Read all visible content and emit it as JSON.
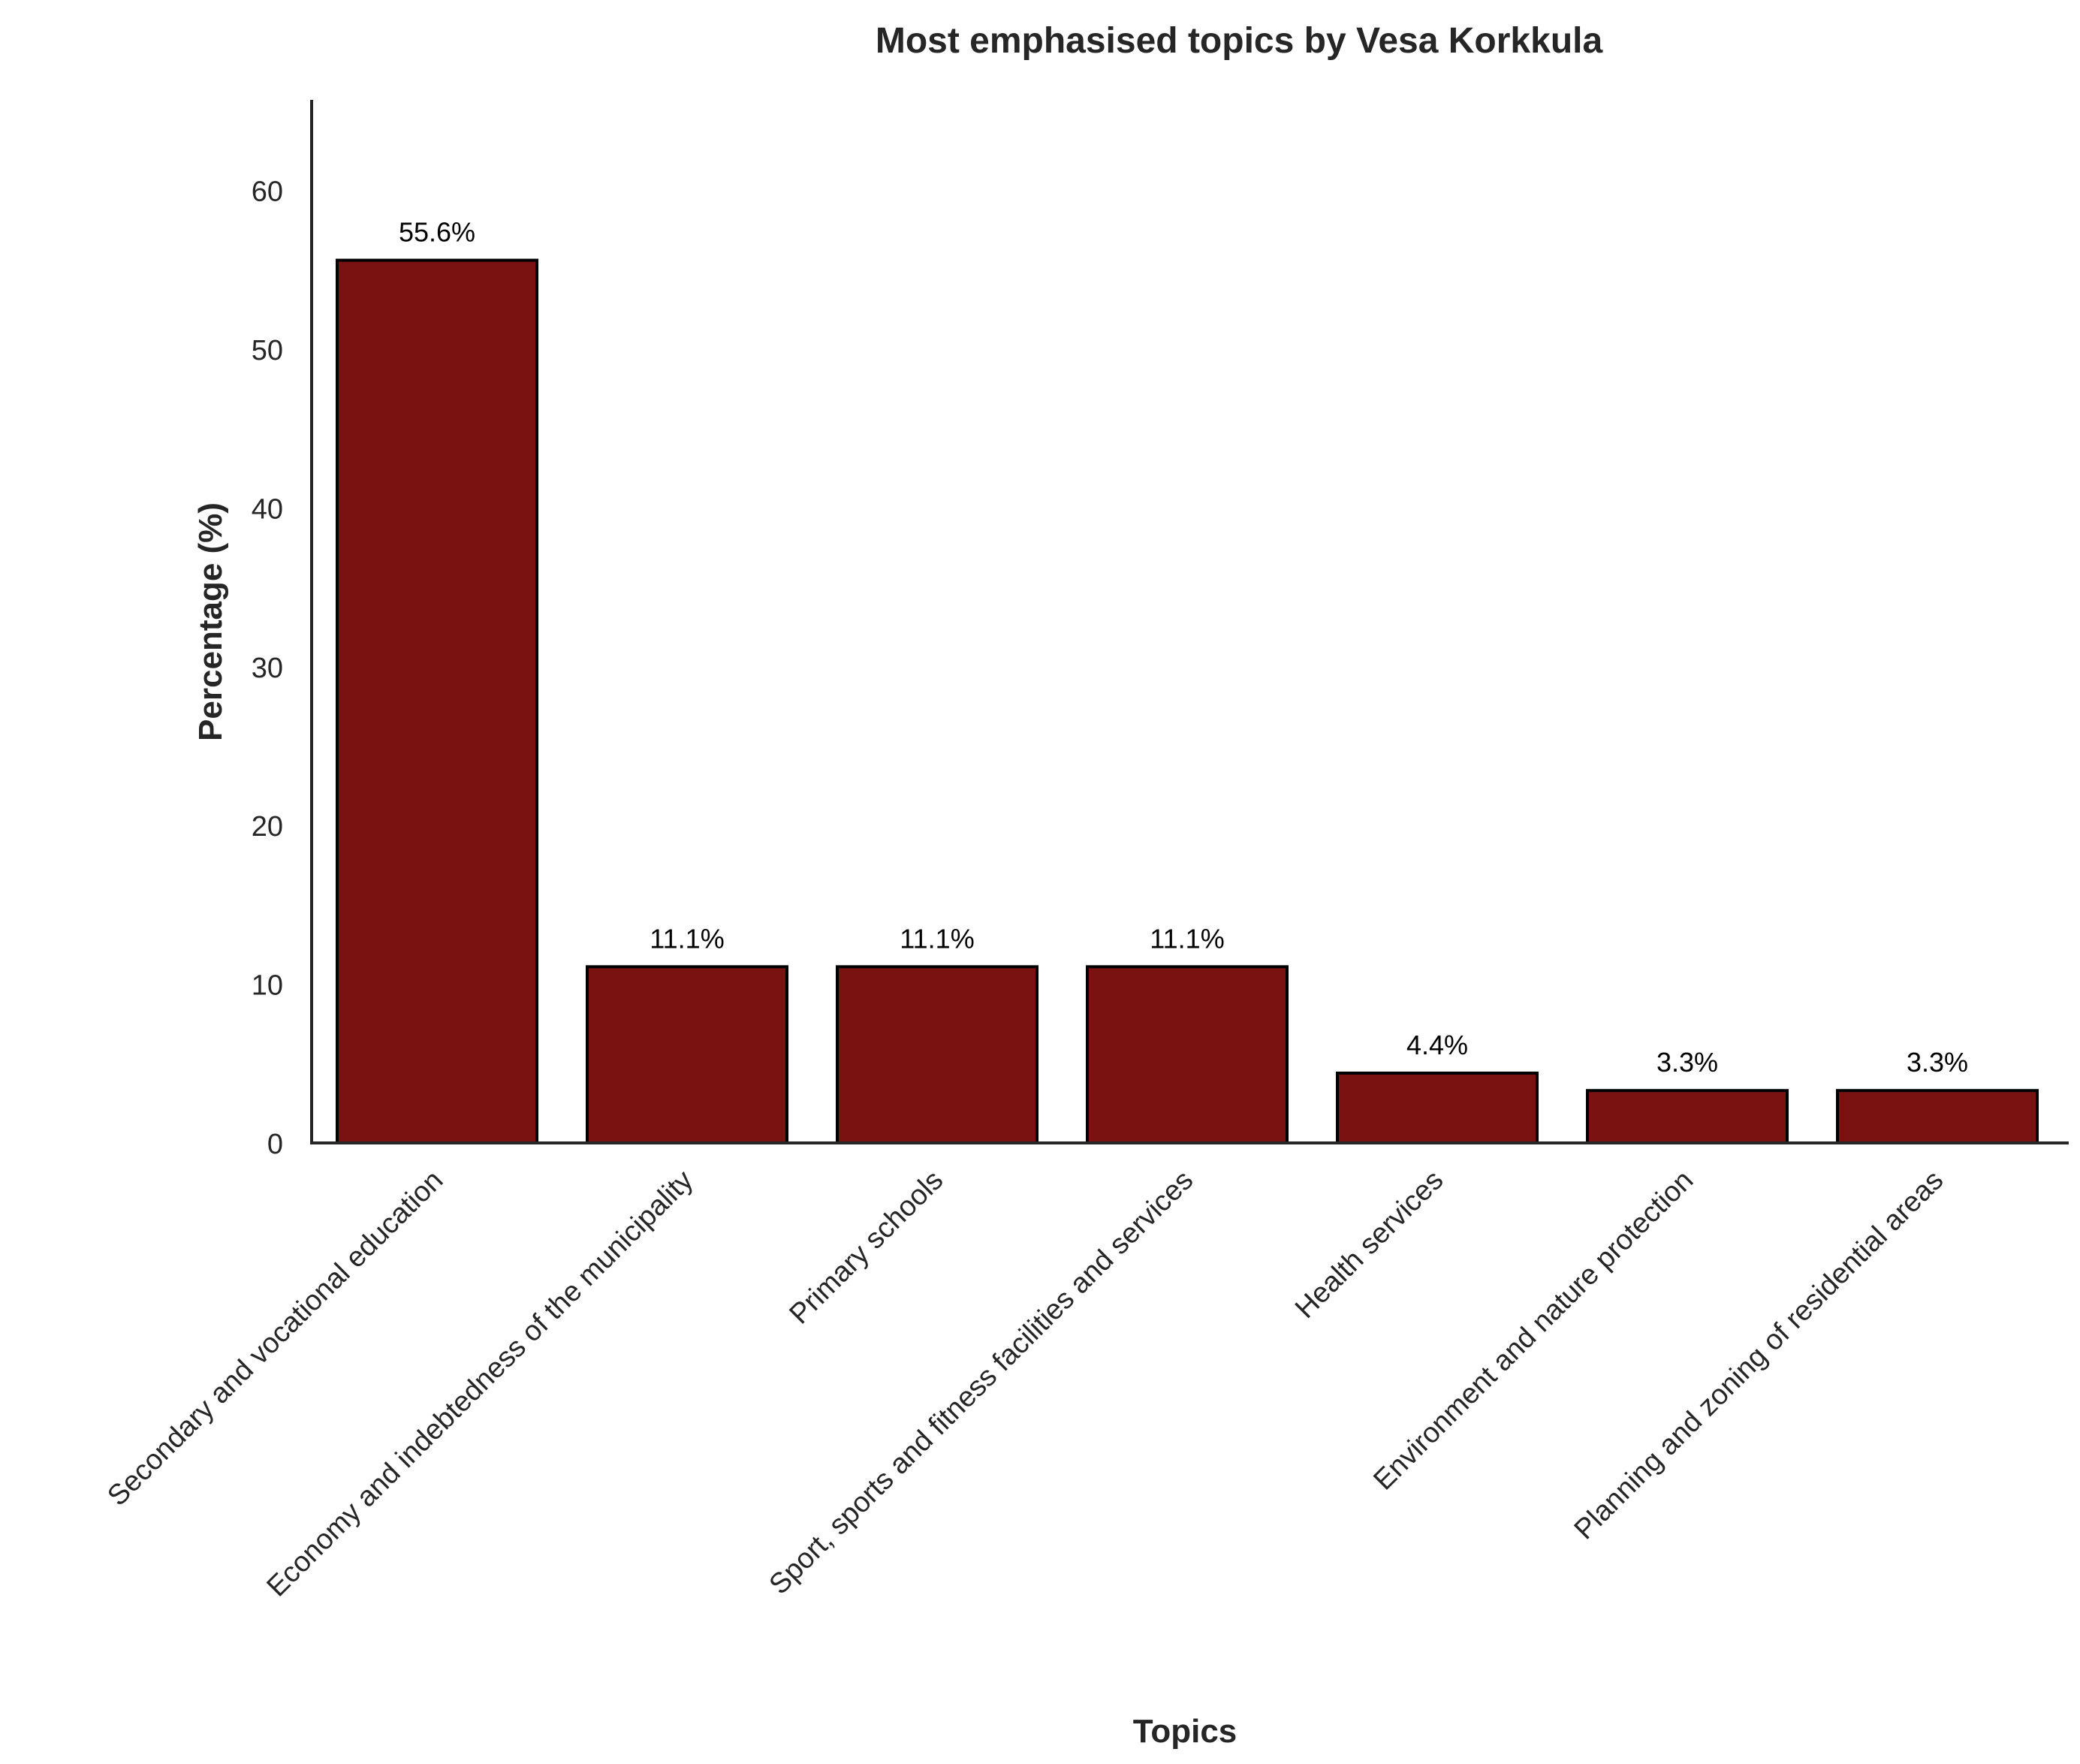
{
  "chart_data": {
    "type": "bar",
    "title": "Most emphasised topics by Vesa Korkkula",
    "xlabel": "Topics",
    "ylabel": "Percentage (%)",
    "categories": [
      "Secondary and vocational education",
      "Economy and indebtedness of the municipality",
      "Primary schools",
      "Sport, sports and fitness facilities and services",
      "Health services",
      "Environment and nature protection",
      "Planning and zoning of residential areas"
    ],
    "values": [
      55.6,
      11.1,
      11.1,
      11.1,
      4.4,
      3.3,
      3.3
    ],
    "data_labels": [
      "55.6%",
      "11.1%",
      "11.1%",
      "11.1%",
      "4.4%",
      "3.3%",
      "3.3%"
    ],
    "yticks": [
      0,
      10,
      20,
      30,
      40,
      50,
      60
    ],
    "ylim": [
      0,
      65.7
    ],
    "grid": false,
    "colors": {
      "bar_fill": "#7b1212",
      "bar_edge": "#000000",
      "axis": "#262626",
      "text": "#262626"
    }
  }
}
